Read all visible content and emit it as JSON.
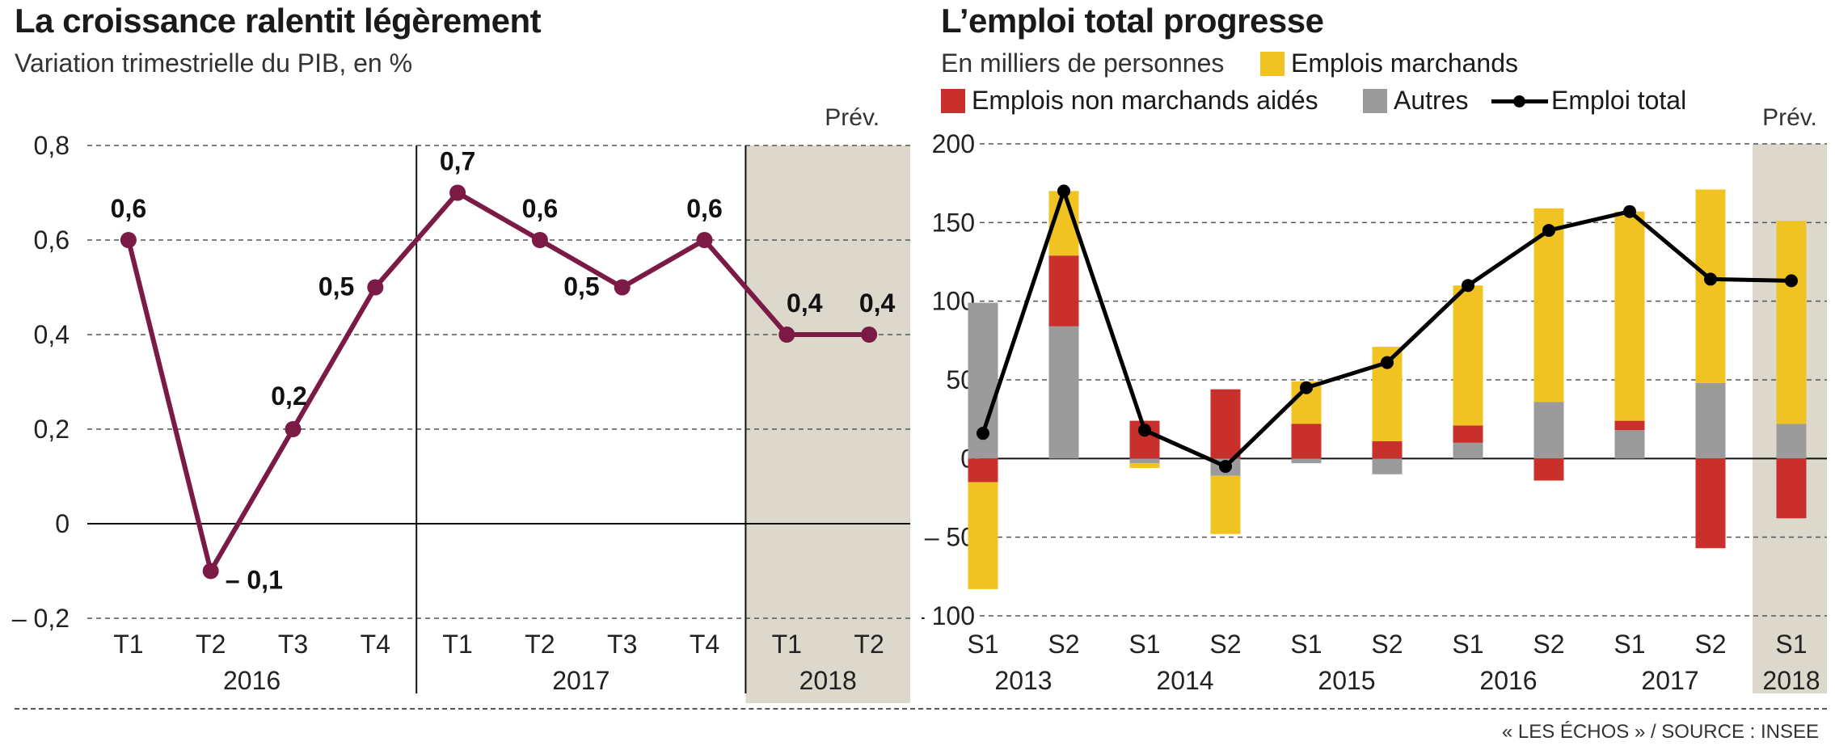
{
  "charts": [
    {
      "title": "La croissance ralentit légèrement",
      "subtitle": "Variation trimestrielle du PIB, en %",
      "forecast_label": "Prév."
    },
    {
      "title": "L’emploi total progresse",
      "units": "En milliers de personnes",
      "forecast_label": "Prév.",
      "legend": [
        {
          "label": "Emplois marchands",
          "color": "#f0c322"
        },
        {
          "label": "Emplois non marchands aidés",
          "color": "#c9302c"
        },
        {
          "label": "Autres",
          "color": "#9b9b9b"
        },
        {
          "label": "Emploi total",
          "color": "#000000"
        }
      ]
    }
  ],
  "source": "« LES ÉCHOS » / SOURCE : INSEE",
  "chart_data": [
    {
      "type": "line",
      "title": "La croissance ralentit légèrement",
      "subtitle": "Variation trimestrielle du PIB, en %",
      "categories": [
        "T1",
        "T2",
        "T3",
        "T4",
        "T1",
        "T2",
        "T3",
        "T4",
        "T1",
        "T2"
      ],
      "years": [
        {
          "label": "2016",
          "span": 4
        },
        {
          "label": "2017",
          "span": 4
        },
        {
          "label": "2018",
          "span": 2
        }
      ],
      "values": [
        0.6,
        -0.1,
        0.2,
        0.5,
        0.7,
        0.6,
        0.5,
        0.6,
        0.4,
        0.4
      ],
      "value_labels": [
        "0,6",
        "– 0,1",
        "0,2",
        "0,5",
        "0,7",
        "0,6",
        "0,5",
        "0,6",
        "0,4",
        "0,4"
      ],
      "forecast_from_index": 8,
      "ylim": [
        -0.2,
        0.8
      ],
      "yticks": [
        -0.2,
        0,
        0.2,
        0.4,
        0.6,
        0.8
      ],
      "ytick_labels": [
        "– 0,2",
        "0",
        "0,2",
        "0,4",
        "0,6",
        "0,8"
      ],
      "line_color": "#7a1a45",
      "grid": true
    },
    {
      "type": "bar",
      "stacked": true,
      "title": "L’emploi total progresse",
      "units": "En milliers de personnes",
      "categories": [
        "S1",
        "S2",
        "S1",
        "S2",
        "S1",
        "S2",
        "S1",
        "S2",
        "S1",
        "S2",
        "S1"
      ],
      "years": [
        {
          "label": "2013",
          "span": 2
        },
        {
          "label": "2014",
          "span": 2
        },
        {
          "label": "2015",
          "span": 2
        },
        {
          "label": "2016",
          "span": 2
        },
        {
          "label": "2017",
          "span": 2
        },
        {
          "label": "2018",
          "span": 1
        }
      ],
      "series": [
        {
          "name": "Autres",
          "color": "#9b9b9b",
          "values": [
            99,
            84,
            -3,
            -11,
            -3,
            -10,
            10,
            36,
            18,
            48,
            22
          ]
        },
        {
          "name": "Emplois non marchands aidés",
          "color": "#c9302c",
          "values": [
            -15,
            45,
            24,
            44,
            22,
            11,
            11,
            -14,
            6,
            -57,
            -38
          ]
        },
        {
          "name": "Emplois marchands",
          "color": "#f0c322",
          "values": [
            -68,
            41,
            -3,
            -37,
            27,
            60,
            89,
            123,
            133,
            123,
            129
          ]
        }
      ],
      "total": {
        "name": "Emploi total",
        "color": "#000000",
        "values": [
          16,
          170,
          18,
          -5,
          45,
          61,
          110,
          145,
          157,
          114,
          113
        ]
      },
      "forecast_from_index": 10,
      "ylim": [
        -100,
        200
      ],
      "yticks": [
        -100,
        -50,
        0,
        50,
        100,
        150,
        200
      ],
      "ytick_labels": [
        "– 100",
        "– 50",
        "0",
        "50",
        "100",
        "150",
        "200"
      ],
      "grid": true
    }
  ]
}
